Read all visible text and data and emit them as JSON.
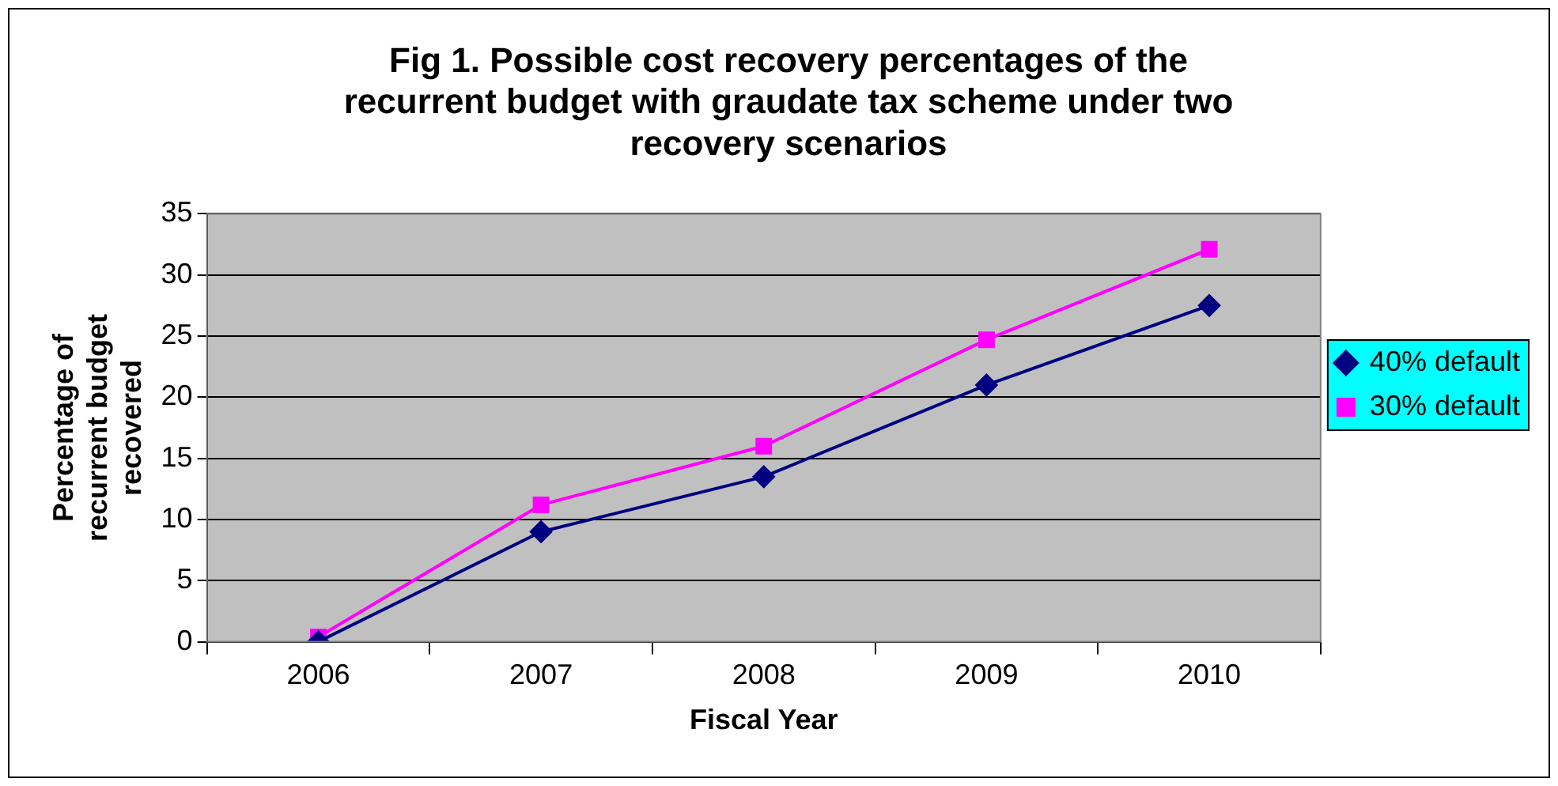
{
  "chart_data": {
    "type": "line",
    "title": "Fig 1. Possible cost recovery percentages of the\nrecurrent budget with graudate tax scheme under two\nrecovery scenarios",
    "xlabel": "Fiscal Year",
    "ylabel": "Percentage of\nrecurrent budget\nrecovered",
    "categories": [
      "2006",
      "2007",
      "2008",
      "2009",
      "2010"
    ],
    "series": [
      {
        "name": "40% default",
        "color": "#000080",
        "marker": "diamond",
        "values": [
          0,
          9.0,
          13.5,
          21.0,
          27.5
        ]
      },
      {
        "name": "30% default",
        "color": "#ff00ff",
        "marker": "square",
        "values": [
          0.4,
          11.2,
          16.0,
          24.7,
          32.1
        ]
      }
    ],
    "ylim": [
      0,
      35
    ],
    "yticks": [
      0,
      5,
      10,
      15,
      20,
      25,
      30,
      35
    ],
    "grid": "y",
    "legend": "right",
    "line_style": "solid"
  }
}
